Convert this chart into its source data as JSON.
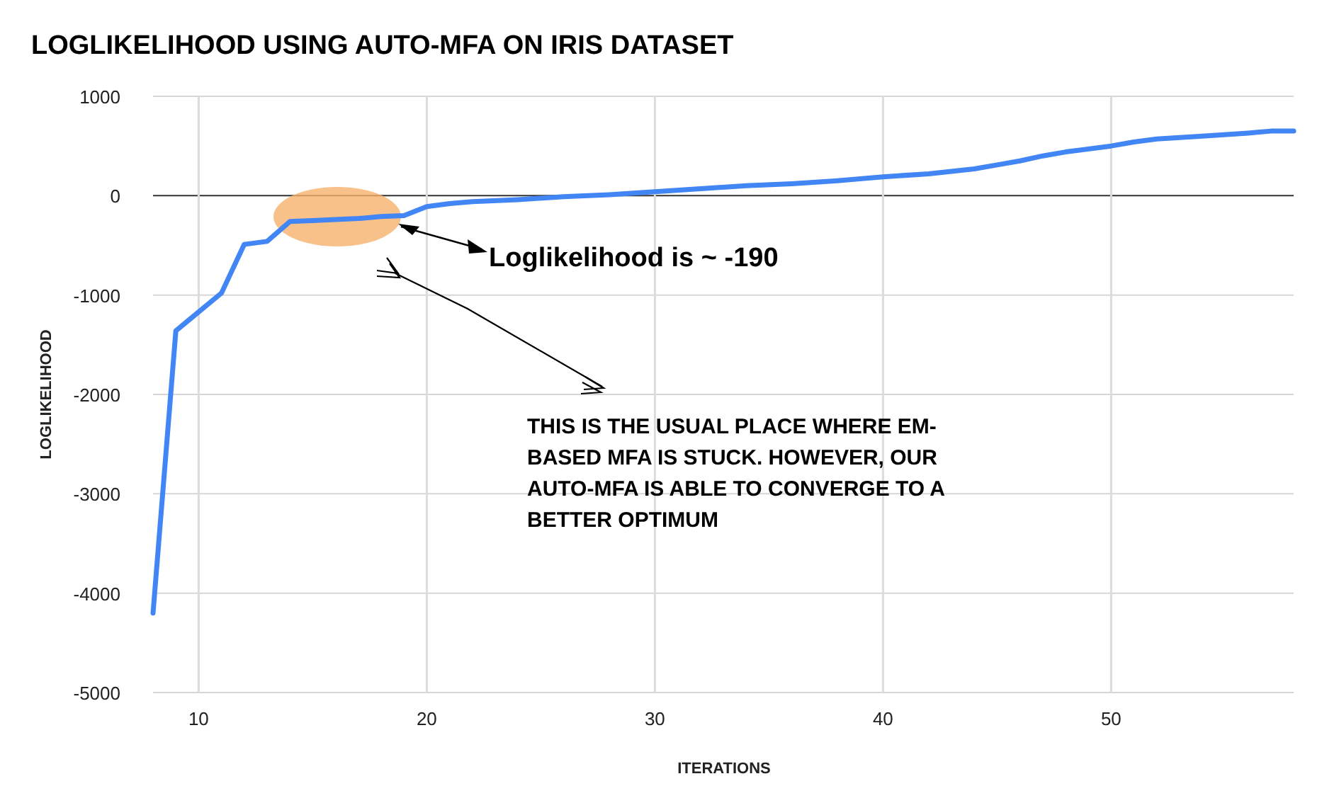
{
  "chart_data": {
    "type": "line",
    "title": "LOGLIKELIHOOD USING AUTO-MFA ON IRIS DATASET",
    "xlabel": "ITERATIONS",
    "ylabel": "LOGLIKELIHOOD",
    "x": [
      8,
      9,
      10,
      11,
      12,
      13,
      14,
      15,
      16,
      17,
      18,
      19,
      20,
      21,
      22,
      24,
      26,
      28,
      30,
      32,
      34,
      36,
      38,
      40,
      42,
      44,
      45,
      46,
      47,
      48,
      50,
      51,
      52,
      54,
      56,
      57,
      58
    ],
    "series": [
      {
        "color": "#4285f4",
        "values": [
          -4200,
          -1360,
          -1170,
          -980,
          -490,
          -460,
          -260,
          -250,
          -240,
          -230,
          -210,
          -200,
          -110,
          -80,
          -60,
          -40,
          -10,
          10,
          40,
          70,
          100,
          120,
          150,
          190,
          220,
          270,
          310,
          350,
          400,
          440,
          500,
          540,
          570,
          600,
          630,
          650,
          650
        ]
      }
    ],
    "xlim": [
      8,
      58
    ],
    "xticks": [
      10,
      20,
      30,
      40,
      50
    ],
    "ylim": [
      -5000,
      1000
    ],
    "yticks": [
      -5000,
      -4000,
      -3000,
      -2000,
      -1000,
      0,
      1000
    ],
    "grid": true,
    "marker": "none",
    "line_style": "solid",
    "annotations": [
      "Loglikelihood is ~ -190",
      "THIS IS THE USUAL PLACE WHERE EM-BASED MFA IS STUCK. HOWEVER, OUR AUTO-MFA IS ABLE TO CONVERGE TO A BETTER OPTIMUM"
    ]
  }
}
